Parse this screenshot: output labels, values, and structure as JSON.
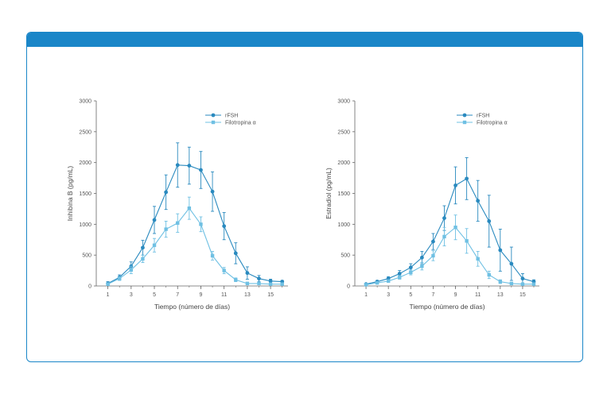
{
  "colors": {
    "card_border": "#1a86c8",
    "header": "#1a86c8",
    "rfsh": "#2a8abf",
    "filo": "#6fc0e3",
    "axis": "#666666"
  },
  "chart_data": [
    {
      "type": "line",
      "title": "",
      "xlabel": "Tiempo (número de días)",
      "ylabel": "Inhibina B (pg/mL)",
      "xlim": [
        0,
        16.5
      ],
      "ylim": [
        0,
        3000
      ],
      "xticks": [
        "1",
        "3",
        "5",
        "7",
        "9",
        "11",
        "13",
        "15"
      ],
      "yticks": [
        "0",
        "500",
        "1000",
        "1500",
        "2000",
        "2500",
        "3000"
      ],
      "legend_position": "top-right",
      "series": [
        {
          "name": "rFSH",
          "marker": "circle",
          "x": [
            1,
            2,
            3,
            4,
            5,
            6,
            7,
            8,
            9,
            10,
            11,
            12,
            13,
            14,
            15,
            16
          ],
          "y": [
            40,
            140,
            320,
            620,
            1070,
            1520,
            1960,
            1950,
            1880,
            1530,
            970,
            530,
            210,
            120,
            80,
            70
          ],
          "err": [
            30,
            40,
            70,
            120,
            220,
            280,
            360,
            300,
            300,
            320,
            220,
            170,
            100,
            50,
            30,
            20
          ]
        },
        {
          "name": "Filotropina α",
          "marker": "square",
          "x": [
            1,
            2,
            3,
            4,
            5,
            6,
            7,
            8,
            9,
            10,
            11,
            12,
            13,
            14,
            15,
            16
          ],
          "y": [
            30,
            120,
            260,
            440,
            660,
            920,
            1020,
            1260,
            1000,
            490,
            250,
            100,
            40,
            40,
            30,
            30
          ],
          "err": [
            20,
            30,
            60,
            60,
            110,
            130,
            150,
            180,
            120,
            70,
            50,
            30,
            20,
            20,
            10,
            10
          ]
        }
      ]
    },
    {
      "type": "line",
      "title": "",
      "xlabel": "Tiempo (número de días)",
      "ylabel": "Estradiol (pg/mL)",
      "xlim": [
        0,
        16.5
      ],
      "ylim": [
        0,
        3000
      ],
      "xticks": [
        "1",
        "3",
        "5",
        "7",
        "9",
        "11",
        "13",
        "15"
      ],
      "yticks": [
        "0",
        "500",
        "1000",
        "1500",
        "2000",
        "2500",
        "3000"
      ],
      "legend_position": "top-right",
      "series": [
        {
          "name": "rFSH",
          "marker": "circle",
          "x": [
            1,
            2,
            3,
            4,
            5,
            6,
            7,
            8,
            9,
            10,
            11,
            12,
            13,
            14,
            15,
            16
          ],
          "y": [
            30,
            70,
            120,
            200,
            300,
            460,
            720,
            1100,
            1630,
            1740,
            1380,
            1050,
            580,
            360,
            120,
            70
          ],
          "err": [
            10,
            20,
            30,
            50,
            60,
            100,
            130,
            200,
            300,
            340,
            330,
            420,
            340,
            270,
            80,
            30
          ]
        },
        {
          "name": "Filotropina α",
          "marker": "square",
          "x": [
            1,
            2,
            3,
            4,
            5,
            6,
            7,
            8,
            9,
            10,
            11,
            12,
            13,
            14,
            15,
            16
          ],
          "y": [
            20,
            50,
            80,
            140,
            220,
            320,
            490,
            800,
            950,
            730,
            440,
            180,
            70,
            40,
            30,
            30
          ],
          "err": [
            10,
            10,
            20,
            30,
            40,
            60,
            80,
            150,
            200,
            200,
            120,
            60,
            30,
            10,
            10,
            10
          ]
        }
      ]
    }
  ]
}
